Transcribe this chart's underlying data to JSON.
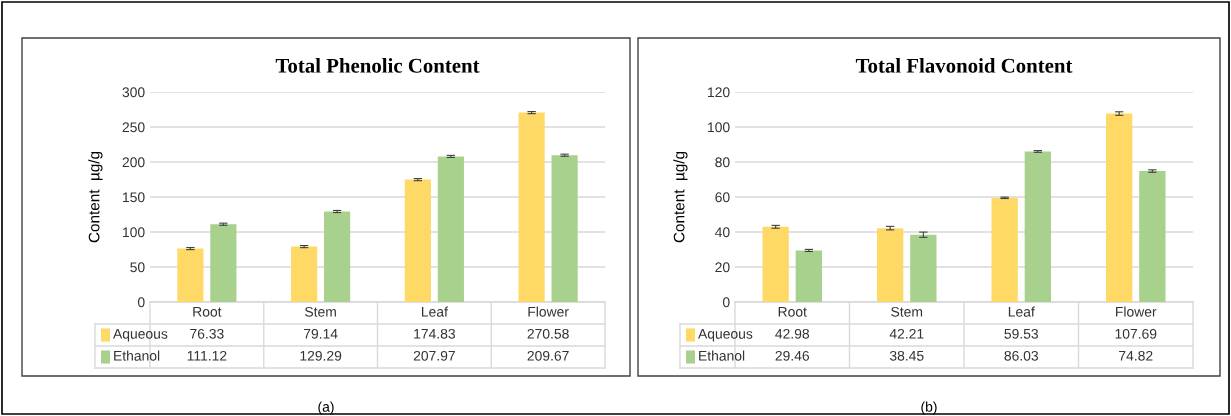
{
  "chart_data": [
    {
      "type": "bar",
      "title": "Total Phenolic Content",
      "ylabel": "Content  µg/g",
      "categories": [
        "Root",
        "Stem",
        "Leaf",
        "Flower"
      ],
      "series": [
        {
          "name": "Aqueous",
          "color": "#ffd966",
          "values": [
            76.33,
            79.14,
            174.83,
            270.58
          ],
          "errors": [
            1.5,
            1.5,
            1.5,
            1.5
          ]
        },
        {
          "name": "Ethanol",
          "color": "#a9d18e",
          "values": [
            111.12,
            129.29,
            207.97,
            209.67
          ],
          "errors": [
            1.5,
            1.5,
            1.5,
            1.5
          ]
        }
      ],
      "ylim": [
        0,
        300
      ],
      "yticks": [
        0,
        50,
        100,
        150,
        200,
        250,
        300
      ],
      "grid": "y",
      "data_labels": true,
      "legend": "bottom left",
      "annotations": [
        "(a)"
      ]
    },
    {
      "type": "bar",
      "title": "Total Flavonoid Content",
      "ylabel": "Content  µg/g",
      "categories": [
        "Root",
        "Stem",
        "Leaf",
        "Flower"
      ],
      "series": [
        {
          "name": "Aqueous",
          "color": "#ffd966",
          "values": [
            42.98,
            42.21,
            59.53,
            107.69
          ],
          "errors": [
            0.8,
            1,
            0.4,
            1
          ]
        },
        {
          "name": "Ethanol",
          "color": "#a9d18e",
          "values": [
            29.46,
            38.45,
            86.03,
            74.82
          ],
          "errors": [
            0.6,
            1.5,
            0.5,
            0.7
          ]
        }
      ],
      "ylim": [
        0,
        120
      ],
      "yticks": [
        0,
        20,
        40,
        60,
        80,
        100,
        120
      ],
      "grid": "y",
      "data_labels": true,
      "legend": "bottom left",
      "annotations": [
        "(b)"
      ]
    }
  ]
}
